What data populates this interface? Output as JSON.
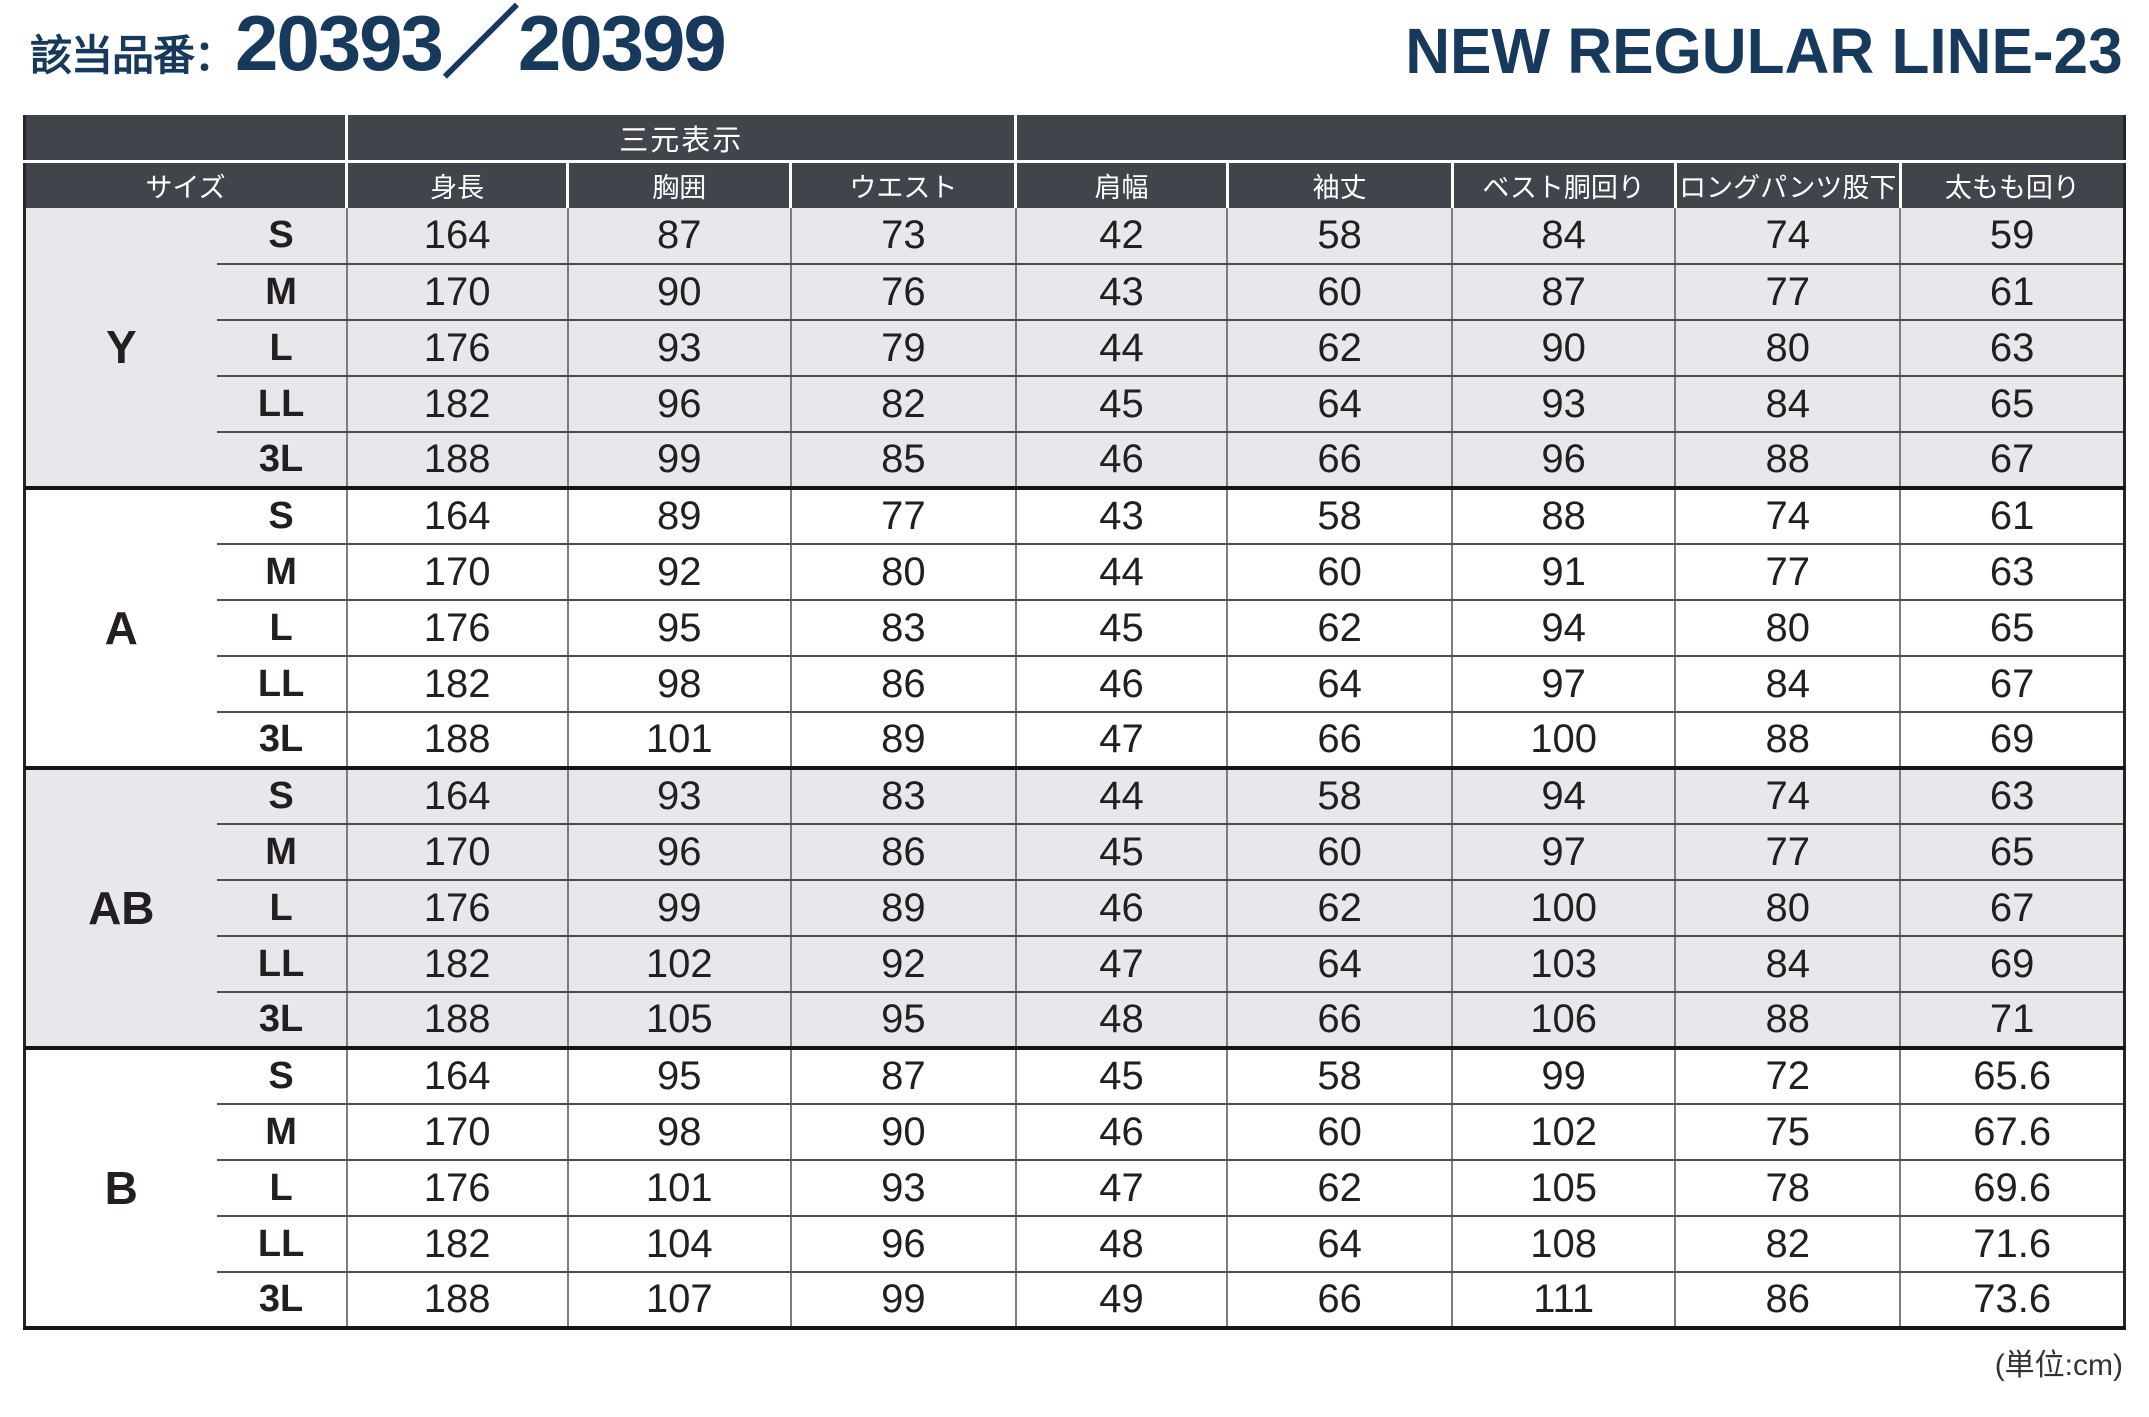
{
  "title": {
    "product_label": "該当品番：",
    "product_numbers": "20393／20399",
    "line_name": "NEW REGULAR LINE-23"
  },
  "table": {
    "span_header": "三元表示",
    "columns": [
      "サイズ",
      "身長",
      "胸囲",
      "ウエスト",
      "肩幅",
      "袖丈",
      "ベスト胴回り",
      "ロングパンツ股下",
      "太もも回り"
    ],
    "groups": [
      {
        "name": "Y",
        "shaded": true,
        "rows": [
          {
            "size": "S",
            "values": [
              164,
              87,
              73,
              42,
              58,
              84,
              74,
              59
            ]
          },
          {
            "size": "M",
            "values": [
              170,
              90,
              76,
              43,
              60,
              87,
              77,
              61
            ]
          },
          {
            "size": "L",
            "values": [
              176,
              93,
              79,
              44,
              62,
              90,
              80,
              63
            ]
          },
          {
            "size": "LL",
            "values": [
              182,
              96,
              82,
              45,
              64,
              93,
              84,
              65
            ]
          },
          {
            "size": "3L",
            "values": [
              188,
              99,
              85,
              46,
              66,
              96,
              88,
              67
            ]
          }
        ]
      },
      {
        "name": "A",
        "shaded": false,
        "rows": [
          {
            "size": "S",
            "values": [
              164,
              89,
              77,
              43,
              58,
              88,
              74,
              61
            ]
          },
          {
            "size": "M",
            "values": [
              170,
              92,
              80,
              44,
              60,
              91,
              77,
              63
            ]
          },
          {
            "size": "L",
            "values": [
              176,
              95,
              83,
              45,
              62,
              94,
              80,
              65
            ]
          },
          {
            "size": "LL",
            "values": [
              182,
              98,
              86,
              46,
              64,
              97,
              84,
              67
            ]
          },
          {
            "size": "3L",
            "values": [
              188,
              101,
              89,
              47,
              66,
              100,
              88,
              69
            ]
          }
        ]
      },
      {
        "name": "AB",
        "shaded": true,
        "rows": [
          {
            "size": "S",
            "values": [
              164,
              93,
              83,
              44,
              58,
              94,
              74,
              63
            ]
          },
          {
            "size": "M",
            "values": [
              170,
              96,
              86,
              45,
              60,
              97,
              77,
              65
            ]
          },
          {
            "size": "L",
            "values": [
              176,
              99,
              89,
              46,
              62,
              100,
              80,
              67
            ]
          },
          {
            "size": "LL",
            "values": [
              182,
              102,
              92,
              47,
              64,
              103,
              84,
              69
            ]
          },
          {
            "size": "3L",
            "values": [
              188,
              105,
              95,
              48,
              66,
              106,
              88,
              71
            ]
          }
        ]
      },
      {
        "name": "B",
        "shaded": false,
        "rows": [
          {
            "size": "S",
            "values": [
              164,
              95,
              87,
              45,
              58,
              99,
              72,
              65.6
            ]
          },
          {
            "size": "M",
            "values": [
              170,
              98,
              90,
              46,
              60,
              102,
              75,
              67.6
            ]
          },
          {
            "size": "L",
            "values": [
              176,
              101,
              93,
              47,
              62,
              105,
              78,
              69.6
            ]
          },
          {
            "size": "LL",
            "values": [
              182,
              104,
              96,
              48,
              64,
              108,
              82,
              71.6
            ]
          },
          {
            "size": "3L",
            "values": [
              188,
              107,
              99,
              49,
              66,
              111,
              86,
              73.6
            ]
          }
        ]
      }
    ]
  },
  "footer": {
    "unit_note": "(単位:cm)"
  },
  "colors": {
    "accent_navy": "#17395c",
    "header_bg": "#40454c",
    "row_shade": "#e8e8ec"
  }
}
